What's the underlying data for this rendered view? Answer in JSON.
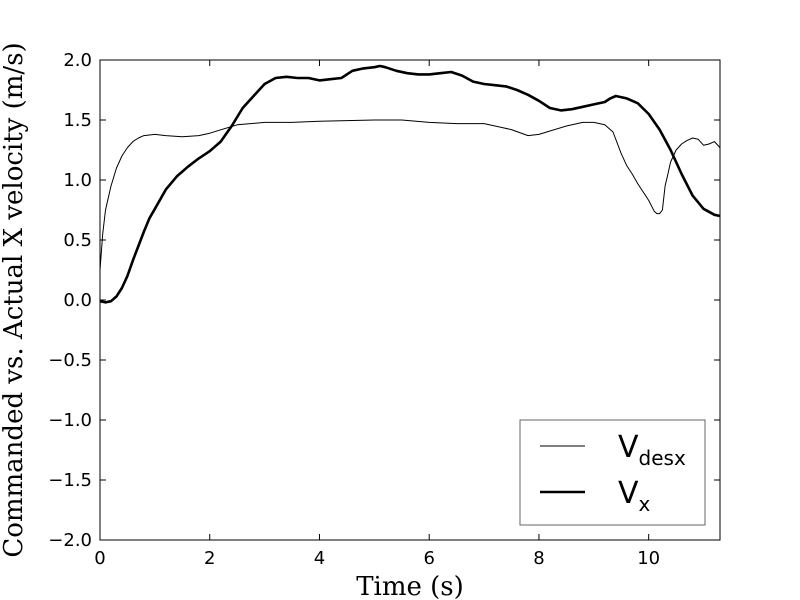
{
  "chart_data": {
    "type": "line",
    "xlabel": "Time (s)",
    "ylabel": "Commanded vs. Actual X velocity (m/s)",
    "xlim": [
      0,
      11.3
    ],
    "ylim": [
      -2.0,
      2.0
    ],
    "x_ticks": [
      "0",
      "2",
      "4",
      "6",
      "8",
      "10"
    ],
    "y_ticks": [
      "−2.0",
      "−1.5",
      "−1.0",
      "−0.5",
      "0.0",
      "0.5",
      "1.0",
      "1.5",
      "2.0"
    ],
    "grid": false,
    "legend_position": "lower-right",
    "series": [
      {
        "name_main": "V",
        "name_sub": "desx",
        "style": "thin",
        "x": [
          0,
          0.05,
          0.1,
          0.2,
          0.3,
          0.4,
          0.5,
          0.6,
          0.7,
          0.8,
          1.0,
          1.2,
          1.5,
          1.8,
          2.0,
          2.5,
          3.0,
          3.5,
          4.0,
          5.0,
          5.5,
          6.0,
          6.5,
          7.0,
          7.5,
          7.8,
          8.0,
          8.5,
          8.8,
          9.0,
          9.2,
          9.35,
          9.5,
          9.6,
          9.7,
          9.8,
          9.9,
          10.0,
          10.1,
          10.15,
          10.2,
          10.25,
          10.3,
          10.35,
          10.4,
          10.5,
          10.6,
          10.7,
          10.8,
          10.9,
          11.0,
          11.1,
          11.2,
          11.3
        ],
        "y": [
          0.25,
          0.55,
          0.75,
          0.95,
          1.1,
          1.2,
          1.27,
          1.32,
          1.35,
          1.37,
          1.38,
          1.37,
          1.36,
          1.37,
          1.39,
          1.46,
          1.48,
          1.48,
          1.49,
          1.5,
          1.5,
          1.48,
          1.47,
          1.47,
          1.42,
          1.37,
          1.38,
          1.45,
          1.48,
          1.48,
          1.46,
          1.4,
          1.22,
          1.12,
          1.05,
          0.97,
          0.9,
          0.83,
          0.74,
          0.72,
          0.72,
          0.75,
          0.95,
          1.05,
          1.15,
          1.25,
          1.3,
          1.33,
          1.35,
          1.34,
          1.29,
          1.3,
          1.32,
          1.27
        ]
      },
      {
        "name_main": "V",
        "name_sub": "x",
        "style": "thick",
        "x": [
          0,
          0.1,
          0.2,
          0.3,
          0.4,
          0.5,
          0.6,
          0.7,
          0.8,
          0.9,
          1.0,
          1.2,
          1.4,
          1.5,
          1.6,
          1.8,
          2.0,
          2.2,
          2.4,
          2.6,
          2.8,
          3.0,
          3.2,
          3.4,
          3.6,
          3.8,
          4.0,
          4.2,
          4.4,
          4.6,
          4.8,
          5.0,
          5.1,
          5.2,
          5.4,
          5.6,
          5.8,
          6.0,
          6.2,
          6.4,
          6.6,
          6.8,
          7.0,
          7.2,
          7.4,
          7.6,
          7.8,
          8.0,
          8.2,
          8.4,
          8.6,
          8.8,
          9.0,
          9.2,
          9.3,
          9.4,
          9.6,
          9.8,
          10.0,
          10.2,
          10.4,
          10.6,
          10.8,
          11.0,
          11.2,
          11.3
        ],
        "y": [
          -0.01,
          -0.02,
          -0.01,
          0.03,
          0.1,
          0.2,
          0.33,
          0.45,
          0.57,
          0.68,
          0.76,
          0.92,
          1.03,
          1.07,
          1.11,
          1.18,
          1.24,
          1.32,
          1.45,
          1.6,
          1.7,
          1.8,
          1.85,
          1.86,
          1.85,
          1.85,
          1.83,
          1.84,
          1.85,
          1.91,
          1.93,
          1.94,
          1.95,
          1.94,
          1.91,
          1.89,
          1.88,
          1.88,
          1.89,
          1.9,
          1.87,
          1.82,
          1.8,
          1.79,
          1.78,
          1.75,
          1.71,
          1.66,
          1.6,
          1.58,
          1.59,
          1.61,
          1.63,
          1.65,
          1.68,
          1.7,
          1.68,
          1.64,
          1.55,
          1.42,
          1.25,
          1.05,
          0.87,
          0.76,
          0.71,
          0.7
        ]
      }
    ]
  }
}
